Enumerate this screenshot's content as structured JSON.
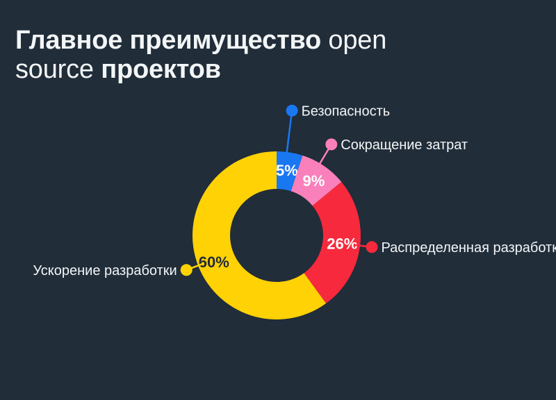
{
  "header": {
    "line1": {
      "bold": "Главное преимущество",
      "regular": " open"
    },
    "line2": {
      "regular": "source",
      "bold": " проектов"
    }
  },
  "colors": {
    "background": "#212D39",
    "text": "#F3F6F7"
  },
  "chart_data": {
    "type": "pie",
    "subtype": "donut",
    "title": "Главное преимущество open source проектов",
    "start_angle_deg": 0,
    "direction": "clockwise",
    "legend_position": "callout-labels",
    "total_percent": 100,
    "slices": [
      {
        "label": "Безопасность",
        "value": 5,
        "percent_label": "5%",
        "color": "#1A77F2",
        "percent_label_color": "#FFFFFF"
      },
      {
        "label": "Сокращение затрат",
        "value": 9,
        "percent_label": "9%",
        "color": "#F980BA",
        "percent_label_color": "#FFFFFF"
      },
      {
        "label": "Распределенная разработка",
        "value": 26,
        "percent_label": "26%",
        "color": "#F7293C",
        "percent_label_color": "#FFFFFF"
      },
      {
        "label": "Ускорение разработки",
        "value": 60,
        "percent_label": "60%",
        "color": "#FFD205",
        "percent_label_color": "#222B36"
      }
    ]
  }
}
